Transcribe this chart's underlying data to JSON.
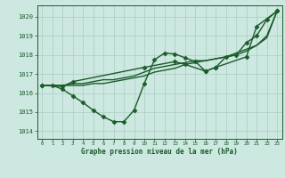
{
  "title": "Graphe pression niveau de la mer (hPa)",
  "background_color": "#cce8e0",
  "plot_bg_color": "#cce8e0",
  "grid_color": "#aaccC4",
  "line_color": "#1a5c2a",
  "xlim": [
    -0.5,
    23.5
  ],
  "ylim": [
    1013.6,
    1020.6
  ],
  "xticks": [
    0,
    1,
    2,
    3,
    4,
    5,
    6,
    7,
    8,
    9,
    10,
    11,
    12,
    13,
    14,
    15,
    16,
    17,
    18,
    19,
    20,
    21,
    22,
    23
  ],
  "yticks": [
    1014,
    1015,
    1016,
    1017,
    1018,
    1019,
    1020
  ],
  "series": [
    {
      "x": [
        0,
        1,
        2,
        3,
        4,
        5,
        6,
        7,
        8,
        9,
        10,
        11,
        12,
        13,
        14,
        15,
        16,
        17,
        18,
        19,
        20,
        21,
        22,
        23
      ],
      "y": [
        1016.4,
        1016.4,
        1016.4,
        1016.4,
        1016.4,
        1016.5,
        1016.5,
        1016.6,
        1016.7,
        1016.8,
        1016.9,
        1017.1,
        1017.2,
        1017.3,
        1017.5,
        1017.6,
        1017.7,
        1017.8,
        1017.9,
        1018.0,
        1018.2,
        1018.5,
        1018.9,
        1020.3
      ],
      "marker": false,
      "linewidth": 1.0
    },
    {
      "x": [
        0,
        1,
        2,
        3,
        4,
        5,
        6,
        7,
        8,
        9,
        10,
        11,
        12,
        13,
        14,
        15,
        16,
        17,
        18,
        19,
        20,
        21,
        22,
        23
      ],
      "y": [
        1016.4,
        1016.4,
        1016.4,
        1016.5,
        1016.5,
        1016.6,
        1016.7,
        1016.7,
        1016.8,
        1016.9,
        1017.1,
        1017.3,
        1017.4,
        1017.5,
        1017.6,
        1017.7,
        1017.7,
        1017.8,
        1017.9,
        1018.1,
        1018.3,
        1018.5,
        1019.0,
        1020.3
      ],
      "marker": false,
      "linewidth": 1.0
    },
    {
      "x": [
        0,
        1,
        2,
        3,
        4,
        5,
        6,
        7,
        8,
        9,
        10,
        11,
        12,
        13,
        14,
        15,
        16,
        17,
        18,
        19,
        20,
        21,
        22,
        23
      ],
      "y": [
        1016.4,
        1016.4,
        1016.2,
        1015.85,
        1015.5,
        1015.1,
        1014.75,
        1014.5,
        1014.5,
        1015.1,
        1016.5,
        1017.75,
        1018.1,
        1018.05,
        1017.85,
        1017.65,
        1017.15,
        1017.35,
        1017.9,
        1018.0,
        1018.65,
        1019.0,
        1019.85,
        1020.3
      ],
      "marker": true,
      "linewidth": 1.0
    },
    {
      "x": [
        0,
        2,
        3,
        10,
        13,
        14,
        16,
        17,
        20,
        21,
        23
      ],
      "y": [
        1016.4,
        1016.35,
        1016.6,
        1017.35,
        1017.65,
        1017.5,
        1017.15,
        1017.35,
        1017.9,
        1019.5,
        1020.3
      ],
      "marker": true,
      "linewidth": 1.0
    }
  ],
  "marker_style": "D",
  "markersize": 2.5
}
